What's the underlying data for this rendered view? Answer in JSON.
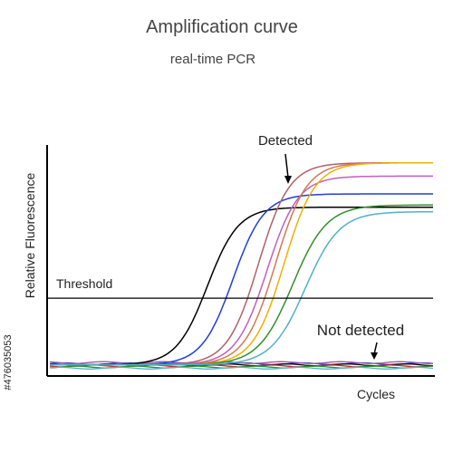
{
  "chart_data": {
    "type": "line",
    "title": "Amplification curve",
    "subtitle": "real-time PCR",
    "xlabel": "Cycles",
    "ylabel": "Relative Fluorescence",
    "xlim": [
      0,
      45
    ],
    "ylim": [
      0,
      100
    ],
    "threshold": {
      "label": "Threshold",
      "value": 33
    },
    "annotations": {
      "detected": "Detected",
      "not_detected": "Not detected"
    },
    "watermark": "#476035053",
    "series_detected": [
      {
        "color": "#000000",
        "ct": 18.5,
        "k": 0.55,
        "plateau": 74
      },
      {
        "color": "#1f3fd8",
        "ct": 21.5,
        "k": 0.55,
        "plateau": 80
      },
      {
        "color": "#b0606a",
        "ct": 24.5,
        "k": 0.55,
        "plateau": 94
      },
      {
        "color": "#c060c0",
        "ct": 25.5,
        "k": 0.55,
        "plateau": 88
      },
      {
        "color": "#d47850",
        "ct": 26.5,
        "k": 0.55,
        "plateau": 94
      },
      {
        "color": "#f0b000",
        "ct": 27.5,
        "k": 0.55,
        "plateau": 94
      },
      {
        "color": "#30902a",
        "ct": 28.5,
        "k": 0.5,
        "plateau": 75
      },
      {
        "color": "#50b0c8",
        "ct": 30.0,
        "k": 0.5,
        "plateau": 72
      }
    ],
    "series_not_detected": [
      {
        "color": "#1f3fd8",
        "base": 3.5
      },
      {
        "color": "#000000",
        "base": 3
      },
      {
        "color": "#c03030",
        "base": 2.5
      },
      {
        "color": "#30902a",
        "base": 2
      },
      {
        "color": "#50b0c8",
        "base": 1.5
      },
      {
        "color": "#9a5aa8",
        "base": 4
      }
    ],
    "baseline": 3
  }
}
